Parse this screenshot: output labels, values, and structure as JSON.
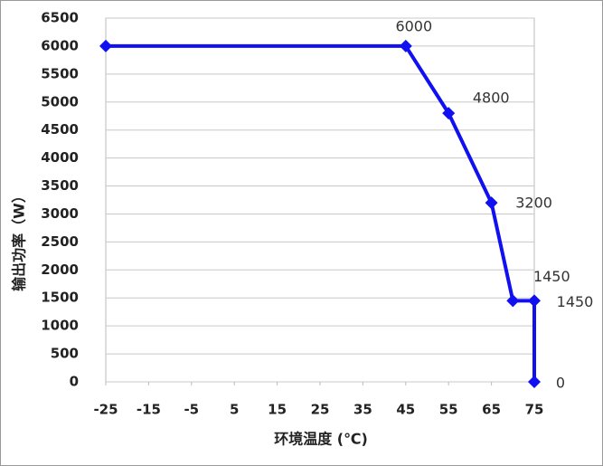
{
  "chart_data": {
    "type": "line",
    "x_label": "环境温度 (℃)",
    "y_label": "输出功率（W）",
    "x": [
      -25,
      45,
      55,
      65,
      70,
      75,
      75
    ],
    "series": [
      {
        "color": "#1010f0",
        "values": [
          6000,
          6000,
          4800,
          3200,
          1450,
          1450,
          0
        ],
        "value_labels": [
          null,
          "6000",
          "4800",
          "3200",
          "1450",
          "1450",
          "0"
        ]
      }
    ],
    "xlim": [
      -25,
      75
    ],
    "xticks": [
      -25,
      -15,
      -5,
      5,
      15,
      25,
      35,
      45,
      55,
      65,
      75
    ],
    "ylim": [
      0,
      6500
    ],
    "yticks": [
      0,
      500,
      1000,
      1500,
      2000,
      2500,
      3000,
      3500,
      4000,
      4500,
      5000,
      5500,
      6000,
      6500
    ],
    "grid": true
  }
}
